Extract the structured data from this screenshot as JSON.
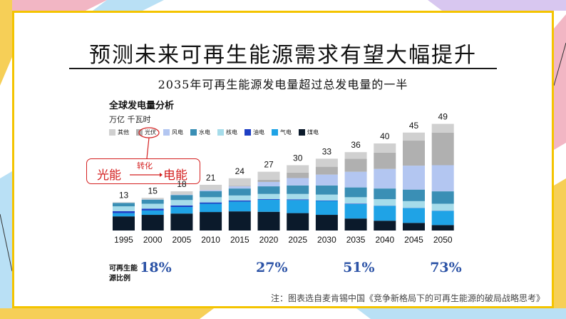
{
  "slide": {
    "title": "预测未来可再生能源需求有望大幅提升",
    "subtitle": "2035年可再生能源发电量超过总发电量的一半",
    "footnote": "注：图表选自麦肯锡中国《竞争新格局下的可再生能源的破局战略思考》"
  },
  "annotation": {
    "left": "光能",
    "top": "转化",
    "right": "电能"
  },
  "renewable_share": {
    "label_line1": "可再生能",
    "label_line2": "源比例",
    "values": [
      {
        "year": "2000",
        "value": "18%"
      },
      {
        "year": "2020",
        "value": "27%"
      },
      {
        "year": "2035",
        "value": "51%"
      },
      {
        "year": "2050",
        "value": "73%"
      }
    ]
  },
  "colors": {
    "accent_border": "#f4c400",
    "annotation": "#d42020",
    "share_text": "#2c53a6"
  },
  "chart_data": {
    "type": "bar",
    "stacked": true,
    "title": "全球发电量分析",
    "unit": "万亿 千瓦时",
    "categories": [
      "1995",
      "2000",
      "2005",
      "2010",
      "2015",
      "2020",
      "2025",
      "2030",
      "2035",
      "2040",
      "2045",
      "2050"
    ],
    "totals": [
      13,
      15,
      18,
      21,
      24,
      27,
      30,
      33,
      36,
      40,
      45,
      49
    ],
    "series": [
      {
        "name": "煤电",
        "color": "#0b1a2b",
        "values": [
          6.5,
          7.2,
          7.8,
          8.5,
          8.8,
          8.6,
          8.0,
          7.2,
          5.5,
          4.5,
          3.5,
          2.5
        ]
      },
      {
        "name": "气电",
        "color": "#1fa3e6",
        "values": [
          1.5,
          2.0,
          3.0,
          3.8,
          4.5,
          5.5,
          6.0,
          6.4,
          6.7,
          6.8,
          6.8,
          6.5
        ]
      },
      {
        "name": "油电",
        "color": "#1e3fc4",
        "values": [
          0.9,
          0.8,
          0.7,
          0.6,
          0.5,
          0.3,
          0.3,
          0.2,
          0.2,
          0.1,
          0.1,
          0.1
        ]
      },
      {
        "name": "核电",
        "color": "#a6dcea",
        "values": [
          2.2,
          2.3,
          2.5,
          2.4,
          2.3,
          2.4,
          2.5,
          2.7,
          2.9,
          3.0,
          3.1,
          3.2
        ]
      },
      {
        "name": "水电",
        "color": "#3a8fb5",
        "values": [
          1.6,
          1.9,
          2.3,
          2.8,
          3.2,
          3.5,
          3.9,
          4.2,
          4.5,
          4.9,
          5.3,
          5.7
        ]
      },
      {
        "name": "风电",
        "color": "#b3c6f1",
        "values": [
          0.0,
          0.1,
          0.2,
          0.5,
          1.0,
          2.0,
          3.4,
          5.0,
          7.2,
          9.0,
          11.0,
          12.0
        ]
      },
      {
        "name": "光伏",
        "color": "#b0b0b0",
        "values": [
          0.0,
          0.0,
          0.0,
          0.1,
          0.3,
          1.0,
          2.5,
          3.6,
          6.0,
          7.5,
          11.5,
          15.0
        ]
      },
      {
        "name": "其他",
        "color": "#d0d0d0",
        "values": [
          0.3,
          0.7,
          1.5,
          2.3,
          3.4,
          3.7,
          3.4,
          3.7,
          3.0,
          4.2,
          3.7,
          4.0
        ]
      }
    ],
    "legend_order": [
      "其他",
      "光伏",
      "风电",
      "水电",
      "核电",
      "油电",
      "气电",
      "煤电"
    ],
    "legend_placement": "top-left",
    "ylim": [
      0,
      50
    ],
    "highlighted_legend": "光伏"
  }
}
